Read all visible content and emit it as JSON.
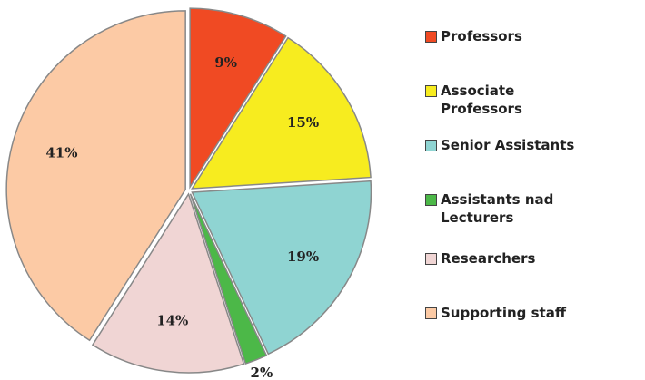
{
  "chart_data": {
    "type": "pie",
    "categories": [
      "Professors",
      "Associate Professors",
      "Senior Assistants",
      "Assistants nad Lecturers",
      "Researchers",
      "Supporting staff"
    ],
    "values": [
      9,
      15,
      19,
      2,
      14,
      41
    ],
    "value_labels": [
      "9%",
      "15%",
      "19%",
      "2%",
      "14%",
      "41%"
    ],
    "colors": [
      "#f04a23",
      "#f7ec1f",
      "#8fd4d2",
      "#4cb848",
      "#f0d5d4",
      "#fccaa5"
    ]
  }
}
